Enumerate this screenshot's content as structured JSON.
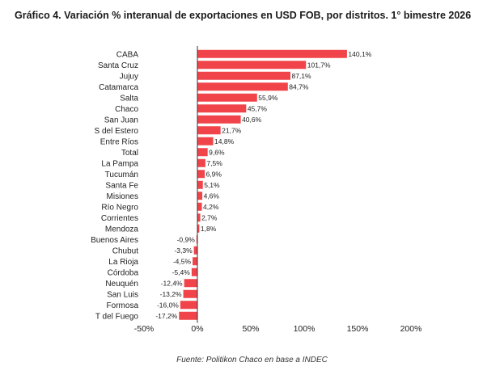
{
  "header": {
    "title": "Gráfico 4. Variación % interanual de exportaciones en USD FOB, por distritos. 1° bimestre 2026"
  },
  "footer": {
    "source": "Fuente: Politikon Chaco en base a INDEC"
  },
  "colors": {
    "bar": "#f0444a",
    "axis": "#333333",
    "text": "#222222"
  },
  "chart_data": {
    "type": "bar",
    "orientation": "horizontal",
    "title": "Gráfico 4. Variación % interanual de exportaciones en USD FOB, por distritos. 1° bimestre 2026",
    "categories": [
      "CABA",
      "Santa Cruz",
      "Jujuy",
      "Catamarca",
      "Salta",
      "Chaco",
      "San Juan",
      "S del Estero",
      "Entre Ríos",
      "Total",
      "La Pampa",
      "Tucumán",
      "Santa Fe",
      "Misiones",
      "Río Negro",
      "Corrientes",
      "Mendoza",
      "Buenos Aires",
      "Chubut",
      "La Rioja",
      "Córdoba",
      "Neuquén",
      "San Luis",
      "Formosa",
      "T del Fuego"
    ],
    "values": [
      140.1,
      101.7,
      87.1,
      84.7,
      55.9,
      45.7,
      40.6,
      21.7,
      14.8,
      9.6,
      7.5,
      6.9,
      5.1,
      4.6,
      4.2,
      2.7,
      1.8,
      -0.9,
      -3.3,
      -4.5,
      -5.4,
      -12.4,
      -13.2,
      -16.0,
      -17.2
    ],
    "value_labels": [
      "140,1%",
      "101,7%",
      "87,1%",
      "84,7%",
      "55,9%",
      "45,7%",
      "40,6%",
      "21,7%",
      "14,8%",
      "9,6%",
      "7,5%",
      "6,9%",
      "5,1%",
      "4,6%",
      "4,2%",
      "2,7%",
      "1,8%",
      "-0,9%",
      "-3,3%",
      "-4,5%",
      "-5,4%",
      "-12,4%",
      "-13,2%",
      "-16,0%",
      "-17,2%"
    ],
    "xlim": [
      -50,
      200
    ],
    "xticks": [
      -50,
      0,
      50,
      100,
      150,
      200
    ],
    "xtick_labels": [
      "-50%",
      "0%",
      "50%",
      "100%",
      "150%",
      "200%"
    ],
    "grid": false
  }
}
